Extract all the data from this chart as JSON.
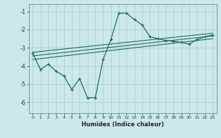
{
  "xlabel": "Humidex (Indice chaleur)",
  "bg_color": "#cde8e8",
  "line_color": "#1a6b5a",
  "grid_color": "#b0d4d4",
  "xlim": [
    -0.5,
    23.5
  ],
  "ylim": [
    -6.6,
    -0.6
  ],
  "yticks": [
    -6,
    -5,
    -4,
    -3,
    -2,
    -1
  ],
  "xticks": [
    0,
    1,
    2,
    3,
    4,
    5,
    6,
    7,
    8,
    9,
    10,
    11,
    12,
    13,
    14,
    15,
    16,
    17,
    18,
    19,
    20,
    21,
    22,
    23
  ],
  "main_x": [
    0,
    1,
    2,
    3,
    4,
    5,
    6,
    7,
    8,
    9,
    10,
    11,
    12,
    13,
    14,
    15,
    16,
    17,
    18,
    19,
    20,
    21,
    22,
    23
  ],
  "main_y": [
    -3.3,
    -4.2,
    -3.9,
    -4.3,
    -4.55,
    -5.3,
    -4.7,
    -5.75,
    -5.75,
    -3.65,
    -2.55,
    -1.1,
    -1.1,
    -1.45,
    -1.75,
    -2.4,
    -2.5,
    -2.6,
    -2.65,
    -2.7,
    -2.8,
    -2.55,
    -2.4,
    -2.3
  ],
  "line1_x": [
    0,
    23
  ],
  "line1_y": [
    -3.25,
    -2.2
  ],
  "line2_x": [
    0,
    23
  ],
  "line2_y": [
    -3.45,
    -2.35
  ],
  "line3_x": [
    0,
    23
  ],
  "line3_y": [
    -3.65,
    -2.5
  ]
}
